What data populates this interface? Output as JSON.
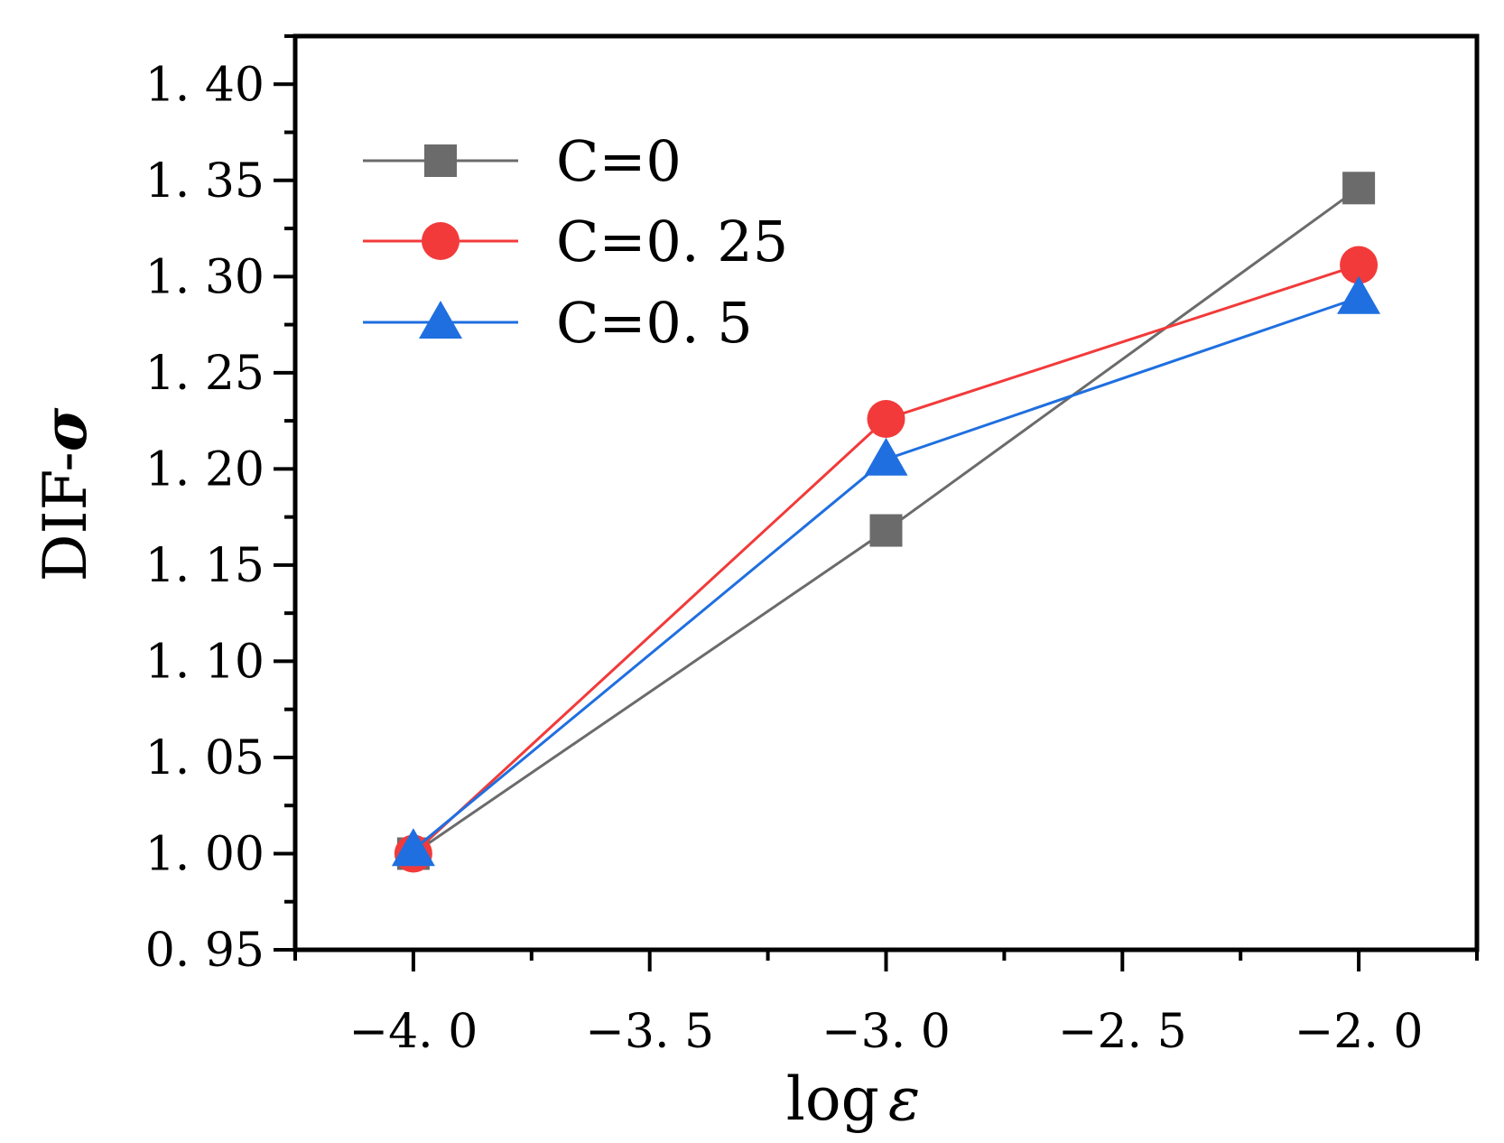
{
  "chart_data": {
    "type": "line",
    "title": "",
    "xlabel": "log ε",
    "xlabel_parts": {
      "prefix": "log",
      "symbol": "ε"
    },
    "ylabel": "DIF-σ",
    "ylabel_parts": {
      "prefix": "DIF-",
      "symbol": "σ"
    },
    "xlim": [
      -4.25,
      -1.75
    ],
    "ylim": [
      0.95,
      1.425
    ],
    "x_ticks": [
      -4.0,
      -3.5,
      -3.0,
      -2.5,
      -2.0
    ],
    "x_tick_labels": [
      "−4. 0",
      "−3. 5",
      "−3. 0",
      "−2. 5",
      "−2. 0"
    ],
    "y_ticks": [
      0.95,
      1.0,
      1.05,
      1.1,
      1.15,
      1.2,
      1.25,
      1.3,
      1.35,
      1.4
    ],
    "y_tick_labels": [
      "0. 95",
      "1. 00",
      "1. 05",
      "1. 10",
      "1. 15",
      "1. 20",
      "1. 25",
      "1. 30",
      "1. 35",
      "1. 40"
    ],
    "grid": false,
    "legend_position": "top-left",
    "series": [
      {
        "name": "C=0",
        "label": "C=0",
        "marker": "square",
        "color": "#6b6b6b",
        "x": [
          -4.0,
          -3.0,
          -2.0
        ],
        "y": [
          1.0,
          1.168,
          1.346
        ]
      },
      {
        "name": "C=0.25",
        "label": "C=0. 25",
        "marker": "circle",
        "color": "#f23a3a",
        "x": [
          -4.0,
          -3.0,
          -2.0
        ],
        "y": [
          1.0,
          1.226,
          1.306
        ]
      },
      {
        "name": "C=0.5",
        "label": "C=0. 5",
        "marker": "triangle",
        "color": "#1f6fe0",
        "x": [
          -4.0,
          -3.0,
          -2.0
        ],
        "y": [
          1.002,
          1.205,
          1.289
        ]
      }
    ]
  }
}
